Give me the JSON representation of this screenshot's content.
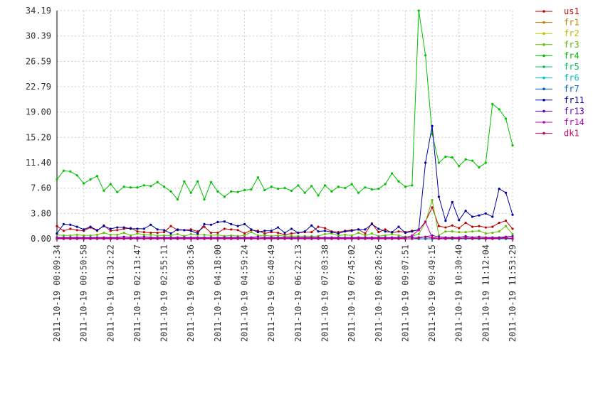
{
  "chart_data": {
    "type": "line",
    "categories": [
      "2011-10-19 00:09:34",
      null,
      null,
      null,
      "2011-10-19 00:50:58",
      null,
      null,
      null,
      "2011-10-19 01:32:22",
      null,
      null,
      null,
      "2011-10-19 02:13:47",
      null,
      null,
      null,
      "2011-10-19 02:55:11",
      null,
      null,
      null,
      "2011-10-19 03:36:36",
      null,
      null,
      null,
      "2011-10-19 04:18:00",
      null,
      null,
      null,
      "2011-10-19 04:59:24",
      null,
      null,
      null,
      "2011-10-19 05:40:49",
      null,
      null,
      null,
      "2011-10-19 06:22:13",
      null,
      null,
      null,
      "2011-10-19 07:03:38",
      null,
      null,
      null,
      "2011-10-19 07:45:02",
      null,
      null,
      null,
      "2011-10-19 08:26:26",
      null,
      null,
      null,
      "2011-10-19 09:07:51",
      null,
      null,
      null,
      "2011-10-19 09:49:15",
      null,
      null,
      null,
      "2011-10-19 10:30:40",
      null,
      null,
      null,
      "2011-10-19 11:12:04",
      null,
      null,
      null,
      "2011-10-19 11:53:29"
    ],
    "ylim": [
      0,
      34.19
    ],
    "yticks": [
      {
        "value": 0,
        "label": "0.00"
      },
      {
        "value": 3.8,
        "label": "3.80"
      },
      {
        "value": 7.6,
        "label": "7.60"
      },
      {
        "value": 11.4,
        "label": "11.40"
      },
      {
        "value": 15.2,
        "label": "15.20"
      },
      {
        "value": 19,
        "label": "19.00"
      },
      22.79,
      26.59,
      30.39,
      34.19
    ],
    "grid": true,
    "legend": "right",
    "series": [
      {
        "name": "us1",
        "color": "#c00000",
        "values": [
          1.9,
          1.2,
          1.5,
          1.3,
          1.2,
          1.7,
          1.2,
          2.0,
          1.2,
          1.3,
          1.5,
          1.6,
          1.1,
          1.0,
          0.9,
          0.9,
          1.0,
          1.9,
          1.3,
          1.3,
          1.4,
          1.1,
          1.8,
          0.9,
          0.9,
          1.5,
          1.4,
          1.3,
          0.8,
          1.3,
          1.2,
          0.8,
          1.0,
          0.9,
          0.6,
          0.8,
          0.9,
          1.0,
          1.0,
          1.8,
          1.6,
          1.1,
          1.0,
          1.2,
          1.3,
          1.4,
          0.8,
          2.3,
          1.0,
          1.4,
          0.9,
          1.1,
          1.0,
          1.2,
          1.3,
          2.6,
          4.7,
          1.9,
          1.7,
          2.0,
          1.6,
          2.4,
          1.8,
          1.9,
          1.7,
          1.8,
          2.4,
          2.7,
          1.5
        ]
      },
      {
        "name": "fr1",
        "color": "#c08000",
        "values": [
          0,
          0,
          0,
          0,
          0,
          0,
          0,
          0,
          0,
          0,
          0,
          0,
          0,
          0,
          0,
          0,
          0,
          0,
          0,
          0,
          0,
          0,
          0,
          0,
          0,
          0,
          0,
          0,
          0,
          0,
          0,
          0,
          0,
          0,
          0,
          0,
          0,
          0,
          0,
          0,
          0,
          0,
          0,
          0,
          0,
          0,
          0,
          0,
          0,
          0,
          0,
          0,
          0,
          0,
          0,
          0,
          0,
          0,
          0,
          0,
          0,
          0,
          0,
          0,
          0,
          0,
          0,
          0,
          0
        ]
      },
      {
        "name": "fr2",
        "color": "#c0c000",
        "values": [
          0,
          0,
          0,
          0,
          0,
          0,
          0,
          0,
          0,
          0,
          0,
          0,
          0,
          0,
          0,
          0,
          0,
          0,
          0,
          0,
          0,
          0,
          0,
          0,
          0,
          0,
          0,
          0,
          0,
          0,
          0,
          0,
          0,
          0,
          0,
          0,
          0,
          0,
          0,
          0,
          0,
          0,
          0,
          0,
          0,
          0,
          0,
          0,
          0,
          0,
          0,
          0,
          0,
          0,
          0,
          0,
          0,
          0,
          0,
          0,
          0,
          0,
          0,
          0,
          0,
          0,
          0,
          0,
          0
        ]
      },
      {
        "name": "fr3",
        "color": "#60c000",
        "values": [
          0.6,
          0.5,
          0.5,
          0.6,
          0.5,
          0.5,
          0.6,
          0.9,
          0.6,
          0.6,
          0.9,
          0.5,
          0.8,
          0.6,
          0.6,
          0.5,
          0.5,
          0.5,
          0.7,
          0.4,
          0.7,
          0.6,
          0.6,
          0.5,
          0.6,
          0.4,
          0.5,
          0.4,
          0.5,
          1.0,
          0.5,
          0.5,
          0.4,
          0.5,
          0.4,
          0.4,
          0.4,
          0.4,
          0.4,
          0.4,
          0.7,
          0.8,
          0.5,
          0.6,
          0.5,
          0.9,
          0.5,
          0.8,
          0.4,
          0.5,
          0.7,
          0.5,
          0.3,
          0.4,
          0.7,
          2.5,
          5.8,
          0.5,
          1.1,
          1.1,
          1.0,
          1.0,
          1.1,
          1.2,
          0.8,
          0.9,
          1.1,
          1.9,
          0.7
        ]
      },
      {
        "name": "fr4",
        "color": "#00c000",
        "values": [
          8.9,
          10.2,
          10.1,
          9.5,
          8.3,
          8.9,
          9.4,
          7.2,
          8.2,
          7.0,
          7.8,
          7.7,
          7.7,
          8.0,
          7.9,
          8.5,
          7.8,
          7.1,
          5.9,
          8.6,
          6.9,
          8.6,
          5.9,
          8.5,
          7.1,
          6.3,
          7.1,
          7.0,
          7.3,
          7.4,
          9.2,
          7.3,
          7.8,
          7.5,
          7.6,
          7.2,
          8.0,
          6.9,
          7.9,
          6.5,
          8.0,
          7.1,
          7.8,
          7.6,
          8.2,
          6.9,
          7.7,
          7.4,
          7.5,
          8.2,
          9.8,
          8.6,
          7.8,
          8.0,
          34.19,
          27.5,
          15.7,
          11.4,
          12.3,
          12.2,
          10.9,
          11.9,
          11.7,
          10.7,
          11.4,
          20.2,
          19.4,
          18.0,
          14.0
        ]
      },
      {
        "name": "fr5",
        "color": "#00c060",
        "values": [
          0,
          0,
          0,
          0,
          0,
          0,
          0,
          0,
          0,
          0,
          0,
          0,
          0,
          0,
          0,
          0,
          0,
          0,
          0,
          0,
          0,
          0,
          0,
          0,
          0,
          0,
          0,
          0,
          0,
          0,
          0,
          0,
          0,
          0,
          0,
          0,
          0,
          0,
          0,
          0,
          0,
          0,
          0,
          0,
          0,
          0,
          0,
          0,
          0,
          0,
          0,
          0,
          0,
          0,
          0,
          0,
          0,
          0,
          0,
          0,
          0,
          0,
          0,
          0,
          0,
          0,
          0,
          0,
          0
        ]
      },
      {
        "name": "fr6",
        "color": "#00c0c0",
        "values": [
          0,
          0,
          0,
          0,
          0,
          0,
          0,
          0,
          0,
          0,
          0,
          0,
          0,
          0,
          0,
          0,
          0,
          0,
          0,
          0,
          0,
          0,
          0,
          0,
          0,
          0,
          0,
          0,
          0,
          0,
          0,
          0,
          0,
          0,
          0,
          0,
          0,
          0,
          0,
          0,
          0,
          0,
          0,
          0,
          0,
          0,
          0,
          0,
          0,
          0,
          0,
          0,
          0,
          0,
          0,
          0,
          0,
          0,
          0,
          0,
          0,
          0,
          0,
          0,
          0,
          0,
          0,
          0,
          0
        ]
      },
      {
        "name": "fr7",
        "color": "#0060c0",
        "values": [
          0,
          0,
          0,
          0,
          0,
          0,
          0,
          0,
          0,
          0,
          0,
          0,
          0,
          0,
          0,
          0,
          0,
          0,
          0,
          0,
          0,
          0,
          0,
          0,
          0,
          0,
          0,
          0,
          0,
          0,
          0,
          0,
          0,
          0,
          0,
          0,
          0,
          0,
          0,
          0,
          0,
          0,
          0,
          0,
          0,
          0,
          0,
          0,
          0,
          0,
          0,
          0,
          0,
          0,
          0,
          0,
          0,
          0,
          0,
          0,
          0,
          0,
          0,
          0,
          0,
          0,
          0,
          0,
          0
        ]
      },
      {
        "name": "fr11",
        "color": "#0000a0",
        "values": [
          0.8,
          2.2,
          2.1,
          1.8,
          1.4,
          1.8,
          1.3,
          1.9,
          1.5,
          1.7,
          1.7,
          1.5,
          1.5,
          1.5,
          2.1,
          1.4,
          1.3,
          0.8,
          1.4,
          1.3,
          1.2,
          0.8,
          2.2,
          2.1,
          2.5,
          2.6,
          2.2,
          1.9,
          2.2,
          1.4,
          1.0,
          1.2,
          1.2,
          1.7,
          0.9,
          1.5,
          0.9,
          1.1,
          2.0,
          1.1,
          1.2,
          1.0,
          0.8,
          1.1,
          1.2,
          1.4,
          1.4,
          2.2,
          1.5,
          1.1,
          1.0,
          1.8,
          0.9,
          1.1,
          1.4,
          11.4,
          16.9,
          6.3,
          2.7,
          5.5,
          2.8,
          4.2,
          3.3,
          3.5,
          3.8,
          3.3,
          7.5,
          6.9,
          3.6
        ]
      },
      {
        "name": "fr13",
        "color": "#6000c0",
        "values": [
          0.2,
          0.2,
          0.2,
          0.2,
          0.2,
          0.2,
          0.2,
          0.2,
          0.2,
          0.2,
          0.3,
          0.2,
          0.2,
          0.3,
          0.2,
          0.2,
          0.2,
          0.2,
          0.2,
          0.2,
          0.2,
          0.2,
          0.2,
          0.2,
          0.2,
          0.2,
          0.2,
          0.2,
          0.2,
          0.2,
          0.3,
          0.2,
          0.2,
          0.2,
          0.2,
          0.2,
          0.2,
          0.2,
          0.2,
          0.2,
          0.2,
          0.2,
          0.2,
          0.2,
          0.2,
          0.2,
          0.2,
          0.2,
          0.2,
          0.2,
          0.2,
          0.2,
          0.2,
          0.2,
          0.2,
          0.3,
          0.5,
          0.3,
          0.2,
          0.2,
          0.2,
          0.4,
          0.2,
          0.3,
          0.2,
          0.2,
          0.2,
          0.3,
          0.4
        ]
      },
      {
        "name": "fr14",
        "color": "#c000c0",
        "values": [
          0.1,
          0.1,
          0.1,
          0.1,
          0.1,
          0.1,
          0.1,
          0.1,
          0.1,
          0.1,
          0.1,
          0.1,
          0.1,
          0.1,
          0.1,
          0.1,
          0.1,
          0.1,
          0.1,
          0.1,
          0.1,
          0.1,
          0.1,
          0.1,
          0.1,
          0.1,
          0.1,
          0.1,
          0.1,
          0.1,
          0.1,
          0.1,
          0.1,
          0.1,
          0.1,
          0.1,
          0.1,
          0.1,
          0.1,
          0.1,
          0.1,
          0.1,
          0.1,
          0.1,
          0.1,
          0.1,
          0.1,
          0.1,
          0.1,
          0.1,
          0.1,
          0.1,
          0.1,
          0.5,
          1.3,
          2.5,
          0.2,
          0.1,
          0.1,
          0.1,
          0.1,
          0.1,
          0.1,
          0.1,
          0.1,
          0.1,
          0.1,
          0.1,
          0.1
        ]
      },
      {
        "name": "dk1",
        "color": "#c00060",
        "values": [
          0,
          0,
          0,
          0,
          0,
          0,
          0,
          0,
          0,
          0,
          0,
          0,
          0,
          0,
          0,
          0,
          0,
          0,
          0,
          0,
          0,
          0,
          0,
          0,
          0,
          0,
          0,
          0,
          0,
          0,
          0,
          0,
          0,
          0,
          0,
          0,
          0,
          0,
          0,
          0,
          0,
          0,
          0,
          0,
          0,
          0,
          0,
          0,
          0,
          0,
          0,
          0,
          0,
          0,
          0.1,
          0.3,
          0.1,
          0,
          0,
          0.1,
          0,
          0.2,
          0,
          0.1,
          0,
          0,
          0.1,
          0.2,
          0
        ]
      }
    ]
  }
}
